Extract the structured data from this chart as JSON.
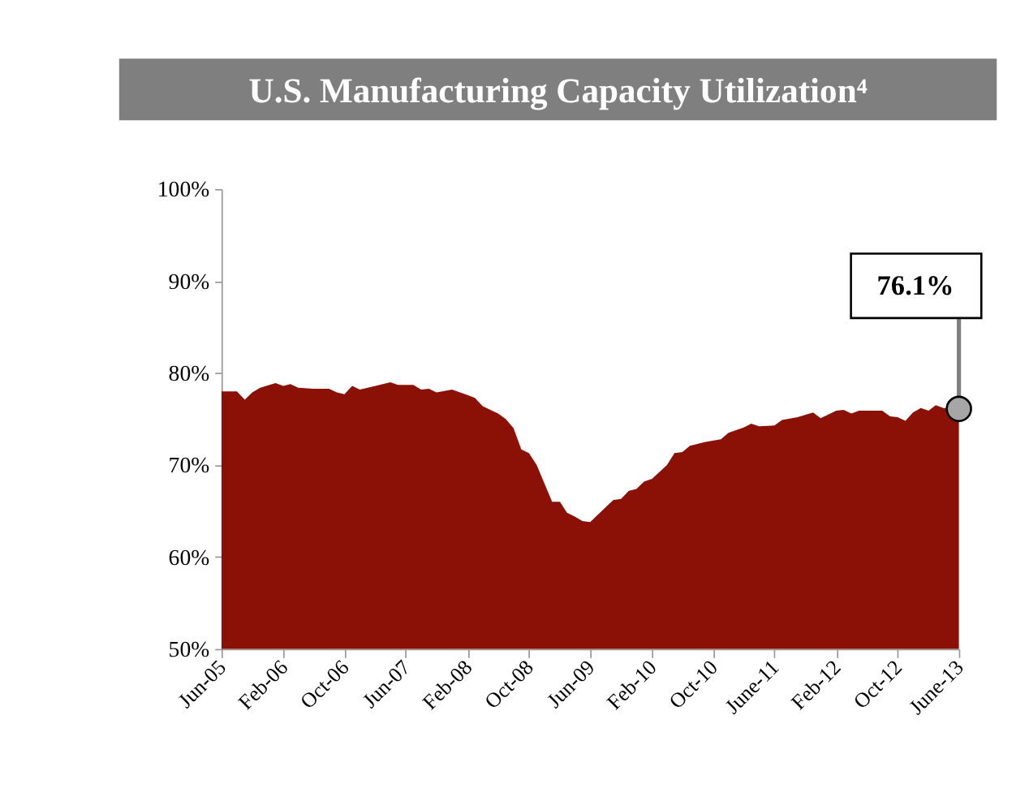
{
  "chart_data": {
    "type": "area",
    "title": "U.S. Manufacturing Capacity Utilization⁴",
    "x": [
      "2005-06",
      "2005-08",
      "2005-09",
      "2005-10",
      "2005-11",
      "2006-01",
      "2006-02",
      "2006-03",
      "2006-04",
      "2006-06",
      "2006-08",
      "2006-09",
      "2006-10",
      "2006-11",
      "2006-12",
      "2007-02",
      "2007-04",
      "2007-05",
      "2007-07",
      "2007-08",
      "2007-09",
      "2007-10",
      "2007-12",
      "2008-02",
      "2008-03",
      "2008-04",
      "2008-06",
      "2008-07",
      "2008-08",
      "2008-09",
      "2008-10",
      "2008-11",
      "2009-01",
      "2009-02",
      "2009-03",
      "2009-04",
      "2009-05",
      "2009-06",
      "2009-08",
      "2009-09",
      "2009-10",
      "2009-11",
      "2009-12",
      "2010-01",
      "2010-02",
      "2010-04",
      "2010-05",
      "2010-06",
      "2010-07",
      "2010-09",
      "2010-11",
      "2010-12",
      "2011-02",
      "2011-03",
      "2011-04",
      "2011-06",
      "2011-07",
      "2011-09",
      "2011-11",
      "2011-12",
      "2012-02",
      "2012-03",
      "2012-04",
      "2012-05",
      "2012-08",
      "2012-09",
      "2012-10",
      "2012-11",
      "2012-12",
      "2013-01",
      "2013-02",
      "2013-03",
      "2013-04",
      "2013-06"
    ],
    "values": [
      78.0,
      78.0,
      77.1,
      77.9,
      78.4,
      78.9,
      78.6,
      78.8,
      78.4,
      78.3,
      78.3,
      77.9,
      77.7,
      78.6,
      78.2,
      78.6,
      79.0,
      78.7,
      78.7,
      78.2,
      78.3,
      77.9,
      78.2,
      77.6,
      77.3,
      76.4,
      75.6,
      75.0,
      74.0,
      71.7,
      71.3,
      70.0,
      66.0,
      66.0,
      64.8,
      64.4,
      63.9,
      63.8,
      65.4,
      66.2,
      66.3,
      67.2,
      67.4,
      68.2,
      68.5,
      70.0,
      71.3,
      71.4,
      72.1,
      72.5,
      72.8,
      73.5,
      74.1,
      74.5,
      74.2,
      74.3,
      74.9,
      75.2,
      75.7,
      75.1,
      75.9,
      76.0,
      75.6,
      75.9,
      75.9,
      75.3,
      75.2,
      74.8,
      75.7,
      76.2,
      75.9,
      76.5,
      76.2,
      76.1
    ],
    "color": "#8b1106",
    "ylim": [
      50,
      100
    ],
    "yticks": [
      {
        "value": 50,
        "label": "50%"
      },
      {
        "value": 60,
        "label": "60%"
      },
      {
        "value": 70,
        "label": "70%"
      },
      {
        "value": 80,
        "label": "80%"
      },
      {
        "value": 90,
        "label": "90%"
      },
      {
        "value": 100,
        "label": "100%"
      }
    ],
    "xlim": [
      "2005-06",
      "2013-06"
    ],
    "xticks": [
      {
        "value": "2005-06",
        "label": "Jun-05"
      },
      {
        "value": "2006-02",
        "label": "Feb-06"
      },
      {
        "value": "2006-10",
        "label": "Oct-06"
      },
      {
        "value": "2007-06",
        "label": "Jun-07"
      },
      {
        "value": "2008-02",
        "label": "Feb-08"
      },
      {
        "value": "2008-10",
        "label": "Oct-08"
      },
      {
        "value": "2009-06",
        "label": "Jun-09"
      },
      {
        "value": "2010-02",
        "label": "Feb-10"
      },
      {
        "value": "2010-10",
        "label": "Oct-10"
      },
      {
        "value": "2011-06",
        "label": "June-11"
      },
      {
        "value": "2012-02",
        "label": "Feb-12"
      },
      {
        "value": "2012-10",
        "label": "Oct-12"
      },
      {
        "value": "2013-06",
        "label": "June-13"
      }
    ],
    "annotations": [
      {
        "text": "76.1%",
        "x": "2013-06",
        "y": 76.1
      }
    ]
  }
}
